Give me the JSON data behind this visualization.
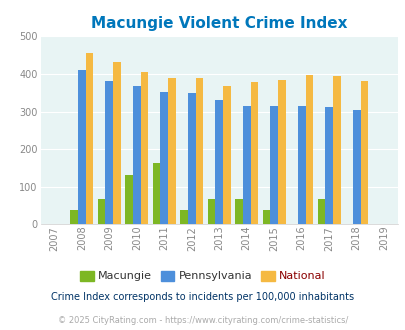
{
  "title": "Macungie Violent Crime Index",
  "years": [
    2007,
    2008,
    2009,
    2010,
    2011,
    2012,
    2013,
    2014,
    2015,
    2016,
    2017,
    2018,
    2019
  ],
  "macungie": [
    null,
    37,
    68,
    130,
    163,
    37,
    68,
    68,
    37,
    null,
    68,
    null,
    null
  ],
  "pennsylvania": [
    null,
    410,
    380,
    367,
    353,
    349,
    330,
    315,
    315,
    315,
    311,
    305,
    null
  ],
  "national": [
    null,
    455,
    432,
    405,
    388,
    388,
    368,
    378,
    383,
    397,
    394,
    380,
    null
  ],
  "bar_colors": {
    "macungie": "#7db724",
    "pennsylvania": "#4d8fdb",
    "national": "#f5b942"
  },
  "ylim": [
    0,
    500
  ],
  "yticks": [
    0,
    100,
    200,
    300,
    400,
    500
  ],
  "plot_bg": "#e8f4f4",
  "title_color": "#0077bb",
  "title_fontsize": 11,
  "legend_labels": [
    "Macungie",
    "Pennsylvania",
    "National"
  ],
  "legend_label_colors": [
    "#333333",
    "#333333",
    "#8b0000"
  ],
  "footnote1": "Crime Index corresponds to incidents per 100,000 inhabitants",
  "footnote2": "© 2025 CityRating.com - https://www.cityrating.com/crime-statistics/",
  "footnote1_color": "#003366",
  "footnote2_color": "#aaaaaa",
  "bar_width": 0.28
}
